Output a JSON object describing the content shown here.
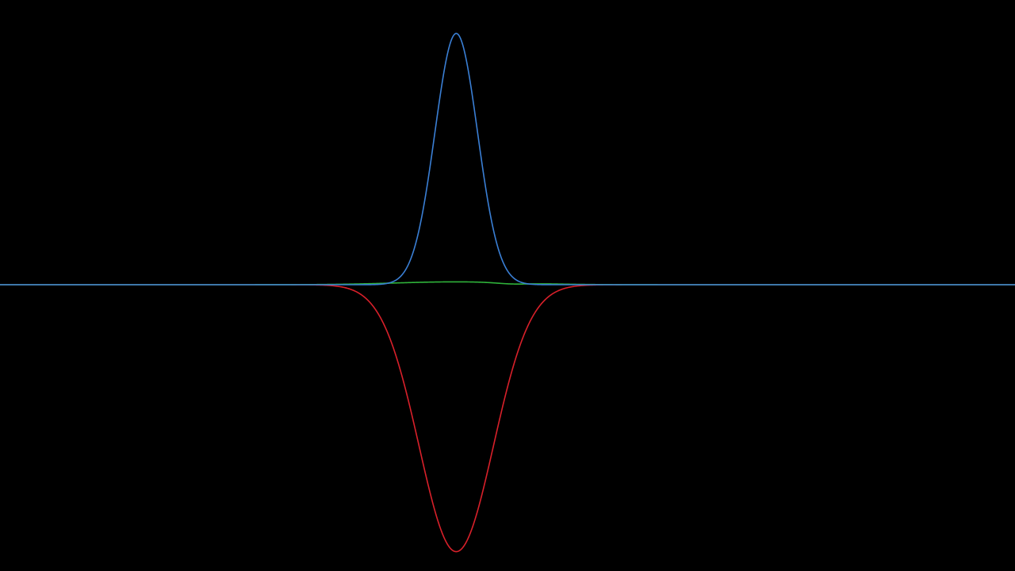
{
  "chart_data": {
    "type": "line",
    "title": "",
    "xlabel": "",
    "ylabel": "",
    "xlim": [
      -1,
      1
    ],
    "ylim": [
      -1,
      1
    ],
    "grid": false,
    "axes_visible": false,
    "background": "#000000",
    "series": [
      {
        "shape": "gaussian",
        "center": -0.101,
        "amplitude": -0.935,
        "sigma": 0.073,
        "color": "#d8202a"
      },
      {
        "shape": "gaussian",
        "center": -0.101,
        "amplitude": 0.01,
        "sigma": 0.12,
        "color": "#2fb23a"
      },
      {
        "shape": "gaussian",
        "center": -0.101,
        "amplitude": 0.88,
        "sigma": 0.042,
        "color": "#3a7fd5"
      }
    ]
  }
}
